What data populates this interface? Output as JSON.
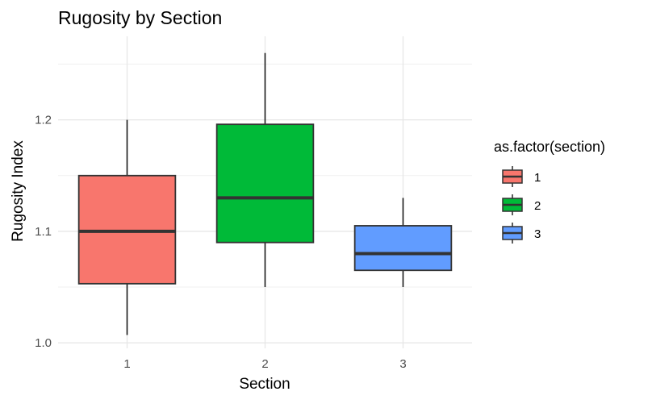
{
  "chart_data": {
    "type": "boxplot",
    "title": "Rugosity by Section",
    "xlabel": "Section",
    "ylabel": "Rugosity Index",
    "categories": [
      "1",
      "2",
      "3"
    ],
    "yticks": [
      "1.0",
      "1.1",
      "1.2"
    ],
    "ylim": [
      0.995,
      1.275
    ],
    "grid": true,
    "legend": {
      "title": "as.factor(section)",
      "position": "right",
      "entries": [
        "1",
        "2",
        "3"
      ]
    },
    "series": [
      {
        "name": "1",
        "color": "#F8766D",
        "whisker_low": 1.007,
        "q1": 1.053,
        "median": 1.1,
        "q3": 1.15,
        "whisker_high": 1.2
      },
      {
        "name": "2",
        "color": "#00BA38",
        "whisker_low": 1.05,
        "q1": 1.09,
        "median": 1.13,
        "q3": 1.196,
        "whisker_high": 1.26
      },
      {
        "name": "3",
        "color": "#619CFF",
        "whisker_low": 1.05,
        "q1": 1.065,
        "median": 1.08,
        "q3": 1.105,
        "whisker_high": 1.13
      }
    ]
  }
}
